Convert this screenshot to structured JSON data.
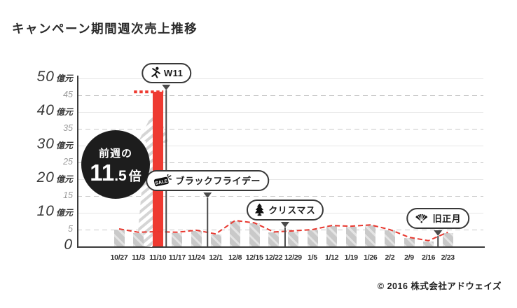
{
  "page": {
    "title": "キャンペーン期間週次売上推移",
    "copyright": "© 2016 株式会社アドウェイズ"
  },
  "chart_data": {
    "type": "bar",
    "title": "キャンペーン期間週次売上推移",
    "unit": "億元",
    "categories": [
      "10/27",
      "11/3",
      "11/10",
      "11/17",
      "11/24",
      "12/1",
      "12/8",
      "12/15",
      "12/22",
      "12/29",
      "1/5",
      "1/12",
      "1/19",
      "1/26",
      "2/2",
      "2/9",
      "2/16",
      "2/23"
    ],
    "values": [
      5,
      4,
      46,
      4,
      4.6,
      3.5,
      7.5,
      6.8,
      4.1,
      4.4,
      4.8,
      6,
      5.8,
      6.2,
      4.8,
      2.5,
      1.5,
      4
    ],
    "trend_values": [
      5,
      4,
      4.2,
      4,
      4.6,
      3.5,
      7.5,
      6.8,
      4.1,
      4.4,
      4.8,
      6,
      5.8,
      6.2,
      4.8,
      2.5,
      1.5,
      4
    ],
    "highlight_index": 2,
    "ylim": [
      0,
      50
    ],
    "y_major_ticks": [
      0,
      10,
      20,
      30,
      40,
      50
    ],
    "y_minor_ticks": [
      5,
      15,
      25,
      35,
      45
    ],
    "y_major_suffix": "億元",
    "reference_level": 46,
    "grid": true,
    "legend": "none",
    "colors": {
      "highlight": "#ee3a31",
      "bar": "#c9c9c9",
      "trend": "#e8382f",
      "axis": "#3b3b3b",
      "pointer": "#4a4a4a"
    },
    "annotations": [
      {
        "label": "W11",
        "icon": "dancer-icon",
        "line_index": 2.45
      },
      {
        "label": "ブラックフライデー",
        "icon": "sale-tag-icon",
        "icon_text": "SALE",
        "line_index": 4.57
      },
      {
        "label": "クリスマス",
        "icon": "christmas-tree-icon",
        "line_index": 8.6
      },
      {
        "label": "旧正月",
        "icon": "folding-fan-icon",
        "line_index": 16.5
      }
    ],
    "badge": {
      "prefix": "前週の",
      "number": "11",
      "decimal": ".5",
      "suffix": "倍"
    }
  }
}
